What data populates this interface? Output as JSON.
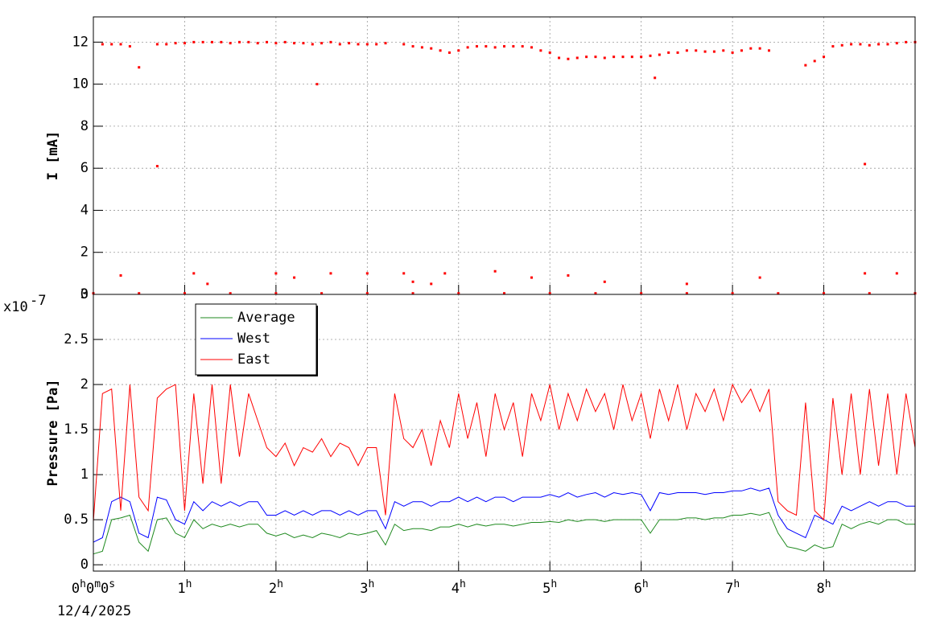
{
  "chart_data": [
    {
      "type": "scatter",
      "y_label": "I [mA]",
      "grid": true,
      "ylim": [
        0,
        13.2
      ],
      "yticks": [
        0,
        2,
        4,
        6,
        8,
        10,
        12
      ],
      "series": [
        {
          "color": "#ff0000",
          "x": [
            0,
            0.1,
            0.2,
            0.3,
            0.4,
            0.5,
            0.6,
            0.7,
            0.8,
            0.9,
            1,
            1.1,
            1.2,
            1.3,
            1.4,
            1.5,
            1.6,
            1.7,
            1.8,
            1.9,
            2,
            2.1,
            2.2,
            2.3,
            2.4,
            2.5,
            2.6,
            2.7,
            2.8,
            2.9,
            3,
            3.1,
            3.2,
            3.3,
            3.4,
            3.5,
            3.6,
            3.7,
            3.8,
            3.9,
            4,
            4.1,
            4.2,
            4.3,
            4.4,
            4.5,
            4.6,
            4.7,
            4.8,
            4.9,
            5,
            5.1,
            5.2,
            5.3,
            5.4,
            5.5,
            5.6,
            5.7,
            5.8,
            5.9,
            6,
            6.1,
            6.2,
            6.3,
            6.4,
            6.5,
            6.6,
            6.7,
            6.8,
            6.9,
            7,
            7.1,
            7.2,
            7.3,
            7.4,
            7.5,
            7.6,
            7.7,
            7.8,
            7.9,
            8,
            8.1,
            8.2,
            8.3,
            8.4,
            8.5,
            8.6,
            8.7,
            8.8,
            8.9,
            9
          ],
          "values": [
            null,
            11.9,
            11.9,
            11.9,
            11.8,
            10.8,
            null,
            11.9,
            11.9,
            11.95,
            11.95,
            12,
            12,
            12,
            12,
            11.95,
            12,
            12,
            11.95,
            12,
            11.95,
            12,
            11.95,
            11.95,
            11.9,
            11.95,
            12,
            11.9,
            11.95,
            11.9,
            11.9,
            11.9,
            11.95,
            null,
            11.9,
            11.8,
            11.75,
            11.7,
            11.6,
            11.5,
            11.6,
            11.75,
            11.8,
            11.8,
            11.75,
            11.8,
            11.8,
            11.8,
            11.75,
            11.6,
            11.5,
            11.25,
            11.2,
            11.25,
            11.3,
            11.3,
            11.25,
            11.3,
            11.3,
            11.3,
            11.3,
            11.35,
            11.4,
            11.5,
            11.5,
            11.6,
            11.6,
            11.55,
            11.55,
            11.6,
            11.5,
            11.6,
            11.7,
            11.7,
            11.6,
            null,
            null,
            null,
            10.9,
            11.1,
            11.3,
            11.8,
            11.85,
            11.9,
            11.9,
            11.85,
            11.9,
            11.9,
            11.95,
            12,
            12
          ]
        },
        {
          "color": "#ff0000",
          "x": [
            0.3,
            0.7,
            1.1,
            1.25,
            2,
            2.2,
            2.45,
            2.6,
            3,
            3.4,
            3.5,
            3.7,
            3.85,
            4.4,
            4.8,
            5.2,
            5.6,
            6.15,
            6.5,
            7.3,
            8.45,
            8.45,
            8.8
          ],
          "values": [
            0.9,
            6.1,
            1,
            0.5,
            1,
            0.8,
            10,
            1,
            1,
            1,
            0.6,
            0.5,
            1,
            1.1,
            0.8,
            0.9,
            0.6,
            10.3,
            0.5,
            0.8,
            1,
            6.2,
            1
          ]
        },
        {
          "color": "#ff0000",
          "x": [
            0,
            0.5,
            1,
            1.5,
            2,
            2.5,
            3,
            3.5,
            4,
            4.5,
            5,
            5.5,
            6,
            6.5,
            7,
            7.5,
            8,
            8.5,
            9
          ],
          "values": [
            0.05,
            0.05,
            0.05,
            0.05,
            0.05,
            0.05,
            0.05,
            0.05,
            0.05,
            0.05,
            0.05,
            0.05,
            0.05,
            0.05,
            0.05,
            0.05,
            0.05,
            0.05,
            0.05
          ]
        }
      ]
    },
    {
      "type": "line",
      "y_label": "Pressure [Pa]",
      "grid": true,
      "legend": "top-left",
      "y_multiplier": {
        "base": "x10",
        "exponent": "-7"
      },
      "date": "12/4/2025",
      "xlim": [
        0,
        9
      ],
      "xticks": [
        {
          "value": 0,
          "label": "0h0m0s"
        },
        {
          "value": 1,
          "label": "1h"
        },
        {
          "value": 2,
          "label": "2h"
        },
        {
          "value": 3,
          "label": "3h"
        },
        {
          "value": 4,
          "label": "4h"
        },
        {
          "value": 5,
          "label": "5h"
        },
        {
          "value": 6,
          "label": "6h"
        },
        {
          "value": 7,
          "label": "7h"
        },
        {
          "value": 8,
          "label": "8h"
        }
      ],
      "ylim": [
        -0.07,
        3
      ],
      "yticks": [
        0,
        0.5,
        1,
        1.5,
        2,
        2.5,
        3
      ],
      "x": [
        0,
        0.1,
        0.2,
        0.3,
        0.4,
        0.5,
        0.6,
        0.7,
        0.8,
        0.9,
        1,
        1.1,
        1.2,
        1.3,
        1.4,
        1.5,
        1.6,
        1.7,
        1.8,
        1.9,
        2,
        2.1,
        2.2,
        2.3,
        2.4,
        2.5,
        2.6,
        2.7,
        2.8,
        2.9,
        3,
        3.1,
        3.2,
        3.3,
        3.4,
        3.5,
        3.6,
        3.7,
        3.8,
        3.9,
        4,
        4.1,
        4.2,
        4.3,
        4.4,
        4.5,
        4.6,
        4.7,
        4.8,
        4.9,
        5,
        5.1,
        5.2,
        5.3,
        5.4,
        5.5,
        5.6,
        5.7,
        5.8,
        5.9,
        6,
        6.1,
        6.2,
        6.3,
        6.4,
        6.5,
        6.6,
        6.7,
        6.8,
        6.9,
        7,
        7.1,
        7.2,
        7.3,
        7.4,
        7.5,
        7.6,
        7.7,
        7.8,
        7.9,
        8,
        8.1,
        8.2,
        8.3,
        8.4,
        8.5,
        8.6,
        8.7,
        8.8,
        8.9,
        9
      ],
      "series": [
        {
          "name": "Average",
          "color": "#1f8a1f",
          "values": [
            0.12,
            0.15,
            0.5,
            0.52,
            0.55,
            0.25,
            0.15,
            0.5,
            0.52,
            0.35,
            0.3,
            0.5,
            0.4,
            0.45,
            0.42,
            0.45,
            0.42,
            0.45,
            0.45,
            0.35,
            0.32,
            0.35,
            0.3,
            0.33,
            0.3,
            0.35,
            0.33,
            0.3,
            0.35,
            0.33,
            0.35,
            0.38,
            0.22,
            0.45,
            0.38,
            0.4,
            0.4,
            0.38,
            0.42,
            0.42,
            0.45,
            0.42,
            0.45,
            0.43,
            0.45,
            0.45,
            0.43,
            0.45,
            0.47,
            0.47,
            0.48,
            0.47,
            0.5,
            0.48,
            0.5,
            0.5,
            0.48,
            0.5,
            0.5,
            0.5,
            0.5,
            0.35,
            0.5,
            0.5,
            0.5,
            0.52,
            0.52,
            0.5,
            0.52,
            0.52,
            0.55,
            0.55,
            0.57,
            0.55,
            0.58,
            0.35,
            0.2,
            0.18,
            0.15,
            0.22,
            0.18,
            0.2,
            0.45,
            0.4,
            0.45,
            0.48,
            0.45,
            0.5,
            0.5,
            0.45,
            0.45
          ]
        },
        {
          "name": "West",
          "color": "#0000ff",
          "values": [
            0.25,
            0.3,
            0.7,
            0.75,
            0.7,
            0.35,
            0.3,
            0.75,
            0.72,
            0.5,
            0.45,
            0.7,
            0.6,
            0.7,
            0.65,
            0.7,
            0.65,
            0.7,
            0.7,
            0.55,
            0.55,
            0.6,
            0.55,
            0.6,
            0.55,
            0.6,
            0.6,
            0.55,
            0.6,
            0.55,
            0.6,
            0.6,
            0.4,
            0.7,
            0.65,
            0.7,
            0.7,
            0.65,
            0.7,
            0.7,
            0.75,
            0.7,
            0.75,
            0.7,
            0.75,
            0.75,
            0.7,
            0.75,
            0.75,
            0.75,
            0.78,
            0.75,
            0.8,
            0.75,
            0.78,
            0.8,
            0.75,
            0.8,
            0.78,
            0.8,
            0.78,
            0.6,
            0.8,
            0.78,
            0.8,
            0.8,
            0.8,
            0.78,
            0.8,
            0.8,
            0.82,
            0.82,
            0.85,
            0.82,
            0.85,
            0.55,
            0.4,
            0.35,
            0.3,
            0.55,
            0.5,
            0.45,
            0.65,
            0.6,
            0.65,
            0.7,
            0.65,
            0.7,
            0.7,
            0.65,
            0.65
          ]
        },
        {
          "name": "East",
          "color": "#ff0000",
          "values": [
            0.48,
            1.9,
            1.95,
            0.6,
            2,
            0.75,
            0.6,
            1.85,
            1.95,
            2,
            0.6,
            1.9,
            0.9,
            2,
            0.9,
            2,
            1.2,
            1.9,
            1.6,
            1.3,
            1.2,
            1.35,
            1.1,
            1.3,
            1.25,
            1.4,
            1.2,
            1.35,
            1.3,
            1.1,
            1.3,
            1.3,
            0.55,
            1.9,
            1.4,
            1.3,
            1.5,
            1.1,
            1.6,
            1.3,
            1.9,
            1.4,
            1.8,
            1.2,
            1.9,
            1.5,
            1.8,
            1.2,
            1.9,
            1.6,
            2,
            1.5,
            1.9,
            1.6,
            1.95,
            1.7,
            1.9,
            1.5,
            2,
            1.6,
            1.9,
            1.4,
            1.95,
            1.6,
            2,
            1.5,
            1.9,
            1.7,
            1.95,
            1.6,
            2,
            1.8,
            1.95,
            1.7,
            1.95,
            0.7,
            0.6,
            0.55,
            1.8,
            0.6,
            0.5,
            1.85,
            1,
            1.9,
            1,
            1.95,
            1.1,
            1.9,
            1,
            1.9,
            1.3
          ]
        }
      ]
    }
  ]
}
